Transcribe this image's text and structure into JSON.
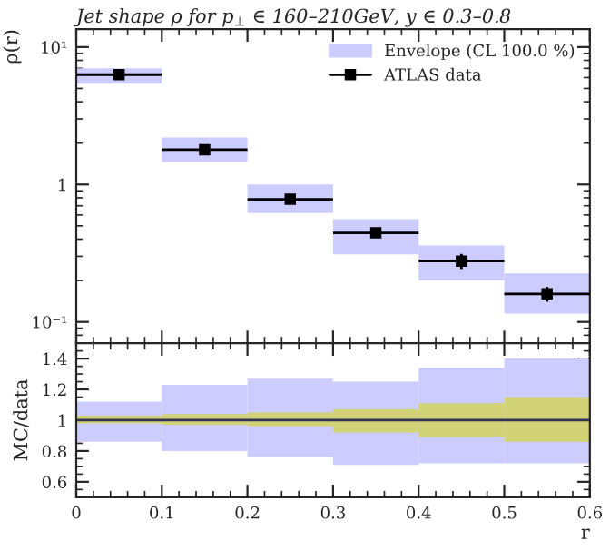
{
  "chart_data": [
    {
      "type": "bar",
      "title": "Jet shape ρ for p$_{⊥}$ ∈ 160–210GeV, y ∈ 0.3–0.8",
      "ylabel": "ρ(r)",
      "x": [
        0.05,
        0.15,
        0.25,
        0.35,
        0.45,
        0.55
      ],
      "log": true,
      "xlim": [
        0,
        0.6
      ],
      "ylim": [
        0.07,
        13.5
      ],
      "yticks": [
        {
          "value": 10,
          "label": "10¹"
        },
        1,
        {
          "value": 0.1,
          "label": "10⁻¹"
        }
      ],
      "xticks": [
        0,
        0.1,
        0.2,
        0.3,
        0.4,
        0.5,
        0.6
      ],
      "tick_labels": "y",
      "legend": "top right",
      "grid": false,
      "series": [
        {
          "name": "Envelope (CL 100.0 %)",
          "color": "#ccccff",
          "base": [
            5.4,
            1.46,
            0.62,
            0.31,
            0.2,
            0.115
          ],
          "values": [
            1.6,
            0.74,
            0.38,
            0.25,
            0.16,
            0.11
          ]
        },
        {
          "name": "ATLAS data",
          "type": "scatter",
          "color": "#000000",
          "marker": "square",
          "values": [
            6.3,
            1.79,
            0.78,
            0.445,
            0.277,
            0.16
          ],
          "xerrors": [
            0.05,
            0.05,
            0.05,
            0.05,
            0.05,
            0.05
          ],
          "errors": [
            0.2,
            0.05,
            0.03,
            0.03,
            0.035,
            0.02
          ]
        }
      ]
    },
    {
      "type": "bar",
      "xlabel": "r",
      "ylabel": "MC/data",
      "x": [
        0.05,
        0.15,
        0.25,
        0.35,
        0.45,
        0.55
      ],
      "xlim": [
        0,
        0.6
      ],
      "ylim": [
        0.5,
        1.5
      ],
      "yticks": [
        0.6,
        0.8,
        1,
        1.2,
        1.4
      ],
      "xticks": [
        0,
        0.1,
        0.2,
        0.3,
        0.4,
        0.5,
        0.6
      ],
      "grid": false,
      "ref_lines": [
        {
          "axis": "y",
          "value": 1,
          "color": "#333355"
        }
      ],
      "series": [
        {
          "color": "#ccccff",
          "base": [
            0.86,
            0.8,
            0.76,
            0.71,
            0.72,
            0.72
          ],
          "values": [
            0.26,
            0.43,
            0.51,
            0.54,
            0.62,
            0.68
          ]
        },
        {
          "color": "#d2d277",
          "base": [
            0.98,
            0.97,
            0.96,
            0.92,
            0.89,
            0.86
          ],
          "values": [
            0.05,
            0.07,
            0.09,
            0.15,
            0.22,
            0.29
          ]
        }
      ]
    }
  ]
}
